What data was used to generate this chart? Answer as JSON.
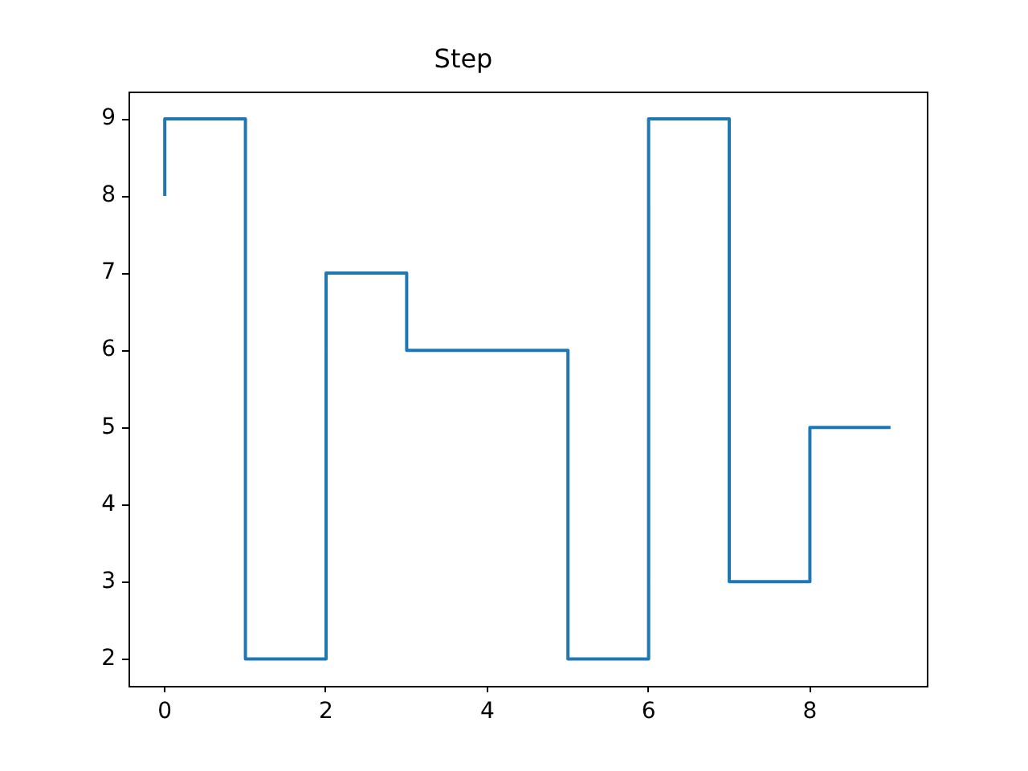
{
  "chart_data": {
    "type": "step",
    "title": "Step",
    "x": [
      0,
      1,
      2,
      3,
      4,
      5,
      6,
      7,
      8,
      9
    ],
    "series": [
      {
        "color": "#1f77b4",
        "values": [
          8,
          9,
          2,
          7,
          6,
          6,
          2,
          9,
          3,
          5
        ]
      }
    ],
    "xlim": [
      -0.45,
      9.45
    ],
    "xticks": [
      0,
      2,
      4,
      6,
      8
    ],
    "ylim": [
      1.65,
      9.35
    ],
    "yticks": [
      2,
      3,
      4,
      5,
      6,
      7,
      8,
      9
    ]
  }
}
